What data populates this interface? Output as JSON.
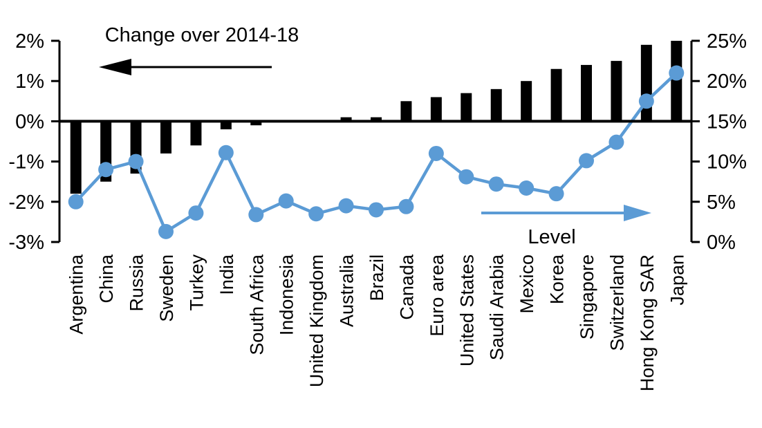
{
  "chart": {
    "left_axis_title": "Change over 2014-18",
    "right_axis_title": "Level",
    "left_arrow_icon": "arrow-pointing-left",
    "right_arrow_icon": "arrow-pointing-right",
    "colors": {
      "bar": "#000000",
      "line": "#5B9BD5",
      "axis": "#000000",
      "background": "#ffffff"
    }
  },
  "chart_data": {
    "type": "bar",
    "subtype": "bar+line-dual-axis",
    "title": "Change over 2014-18",
    "xlabel": "",
    "ylabel_left": "Change over 2014-18 (%)",
    "ylabel_right": "Level (%)",
    "grid": false,
    "legend_position": "none",
    "categories": [
      "Argentina",
      "China",
      "Russia",
      "Sweden",
      "Turkey",
      "India",
      "South Africa",
      "Indonesia",
      "United Kingdom",
      "Australia",
      "Brazil",
      "Canada",
      "Euro area",
      "United States",
      "Saudi Arabia",
      "Mexico",
      "Korea",
      "Singapore",
      "Switzerland",
      "Hong Kong SAR",
      "Japan"
    ],
    "series": [
      {
        "name": "Change over 2014-18",
        "type": "bar",
        "axis": "left",
        "unit": "%",
        "values": [
          -1.8,
          -1.5,
          -1.3,
          -0.8,
          -0.6,
          -0.2,
          -0.1,
          0.0,
          0.0,
          0.1,
          0.1,
          0.5,
          0.6,
          0.7,
          0.8,
          1.0,
          1.3,
          1.4,
          1.5,
          1.9,
          2.0
        ]
      },
      {
        "name": "Level",
        "type": "line",
        "axis": "right",
        "unit": "%",
        "values": [
          5.0,
          9.0,
          10.0,
          1.3,
          3.6,
          11.1,
          3.4,
          5.1,
          3.5,
          4.5,
          4.0,
          4.4,
          11.0,
          8.1,
          7.2,
          6.7,
          6.0,
          10.1,
          12.4,
          17.5,
          21.0
        ]
      }
    ],
    "left_axis": {
      "min": -3,
      "max": 2,
      "tick_step": 1,
      "tick_labels": [
        "2%",
        "1%",
        "0%",
        "-1%",
        "-2%",
        "-3%"
      ]
    },
    "right_axis": {
      "min": 0,
      "max": 25,
      "tick_step": 5,
      "tick_labels": [
        "25%",
        "20%",
        "15%",
        "10%",
        "5%",
        "0%"
      ]
    }
  }
}
